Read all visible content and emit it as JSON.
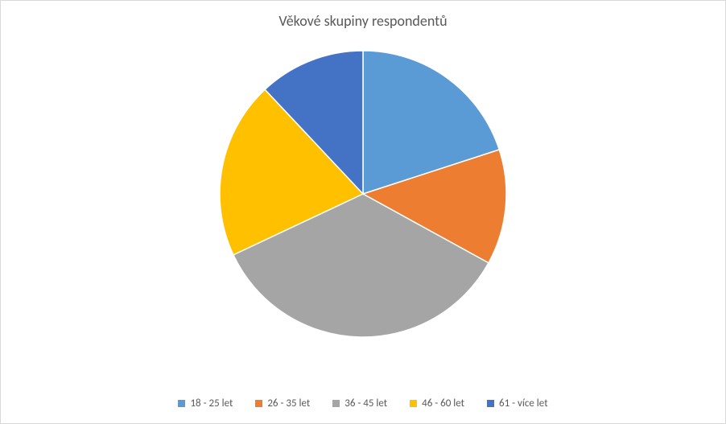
{
  "chart": {
    "type": "pie",
    "title": "Věkové skupiny respondentů",
    "title_fontsize": 18,
    "title_color": "#595959",
    "background_color": "#ffffff",
    "border_color": "#d9d9d9",
    "pie_radius": 178,
    "stroke_color": "#ffffff",
    "stroke_width": 1.5,
    "legend_fontsize": 13,
    "legend_color": "#595959",
    "slices": [
      {
        "label": "18 - 25 let",
        "value": 20,
        "color": "#5b9bd5"
      },
      {
        "label": "26 - 35 let",
        "value": 13,
        "color": "#ed7d31"
      },
      {
        "label": "36 - 45 let",
        "value": 35,
        "color": "#a5a5a5"
      },
      {
        "label": "46 - 60 let",
        "value": 20,
        "color": "#ffc000"
      },
      {
        "label": "61 - více let",
        "value": 12,
        "color": "#4472c4"
      }
    ]
  }
}
